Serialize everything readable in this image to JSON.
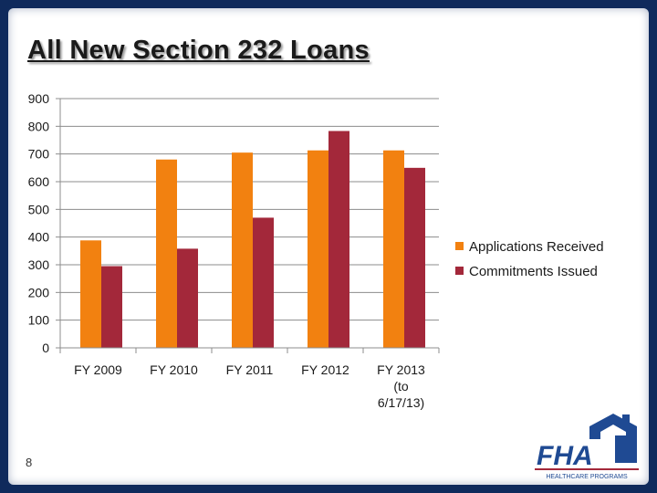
{
  "slide": {
    "title": "All New Section 232 Loans",
    "page_number": "8"
  },
  "logo": {
    "text": "FHA",
    "subtext": "HEALTHCARE PROGRAMS"
  },
  "chart_data": {
    "type": "bar",
    "categories": [
      [
        "FY 2009"
      ],
      [
        "FY 2010"
      ],
      [
        "FY 2011"
      ],
      [
        "FY 2012"
      ],
      [
        "FY 2013",
        "(to",
        "6/17/13)"
      ]
    ],
    "series": [
      {
        "name": "Applications Received",
        "color": "#f28110",
        "values": [
          388,
          680,
          705,
          713,
          713
        ]
      },
      {
        "name": "Commitments Issued",
        "color": "#a3283a",
        "values": [
          295,
          358,
          470,
          783,
          650
        ]
      }
    ],
    "y_ticks": [
      "0",
      "100",
      "200",
      "300",
      "400",
      "500",
      "600",
      "700",
      "800",
      "900"
    ],
    "ylim": [
      0,
      900
    ],
    "grid": true,
    "legend_position": "right"
  }
}
